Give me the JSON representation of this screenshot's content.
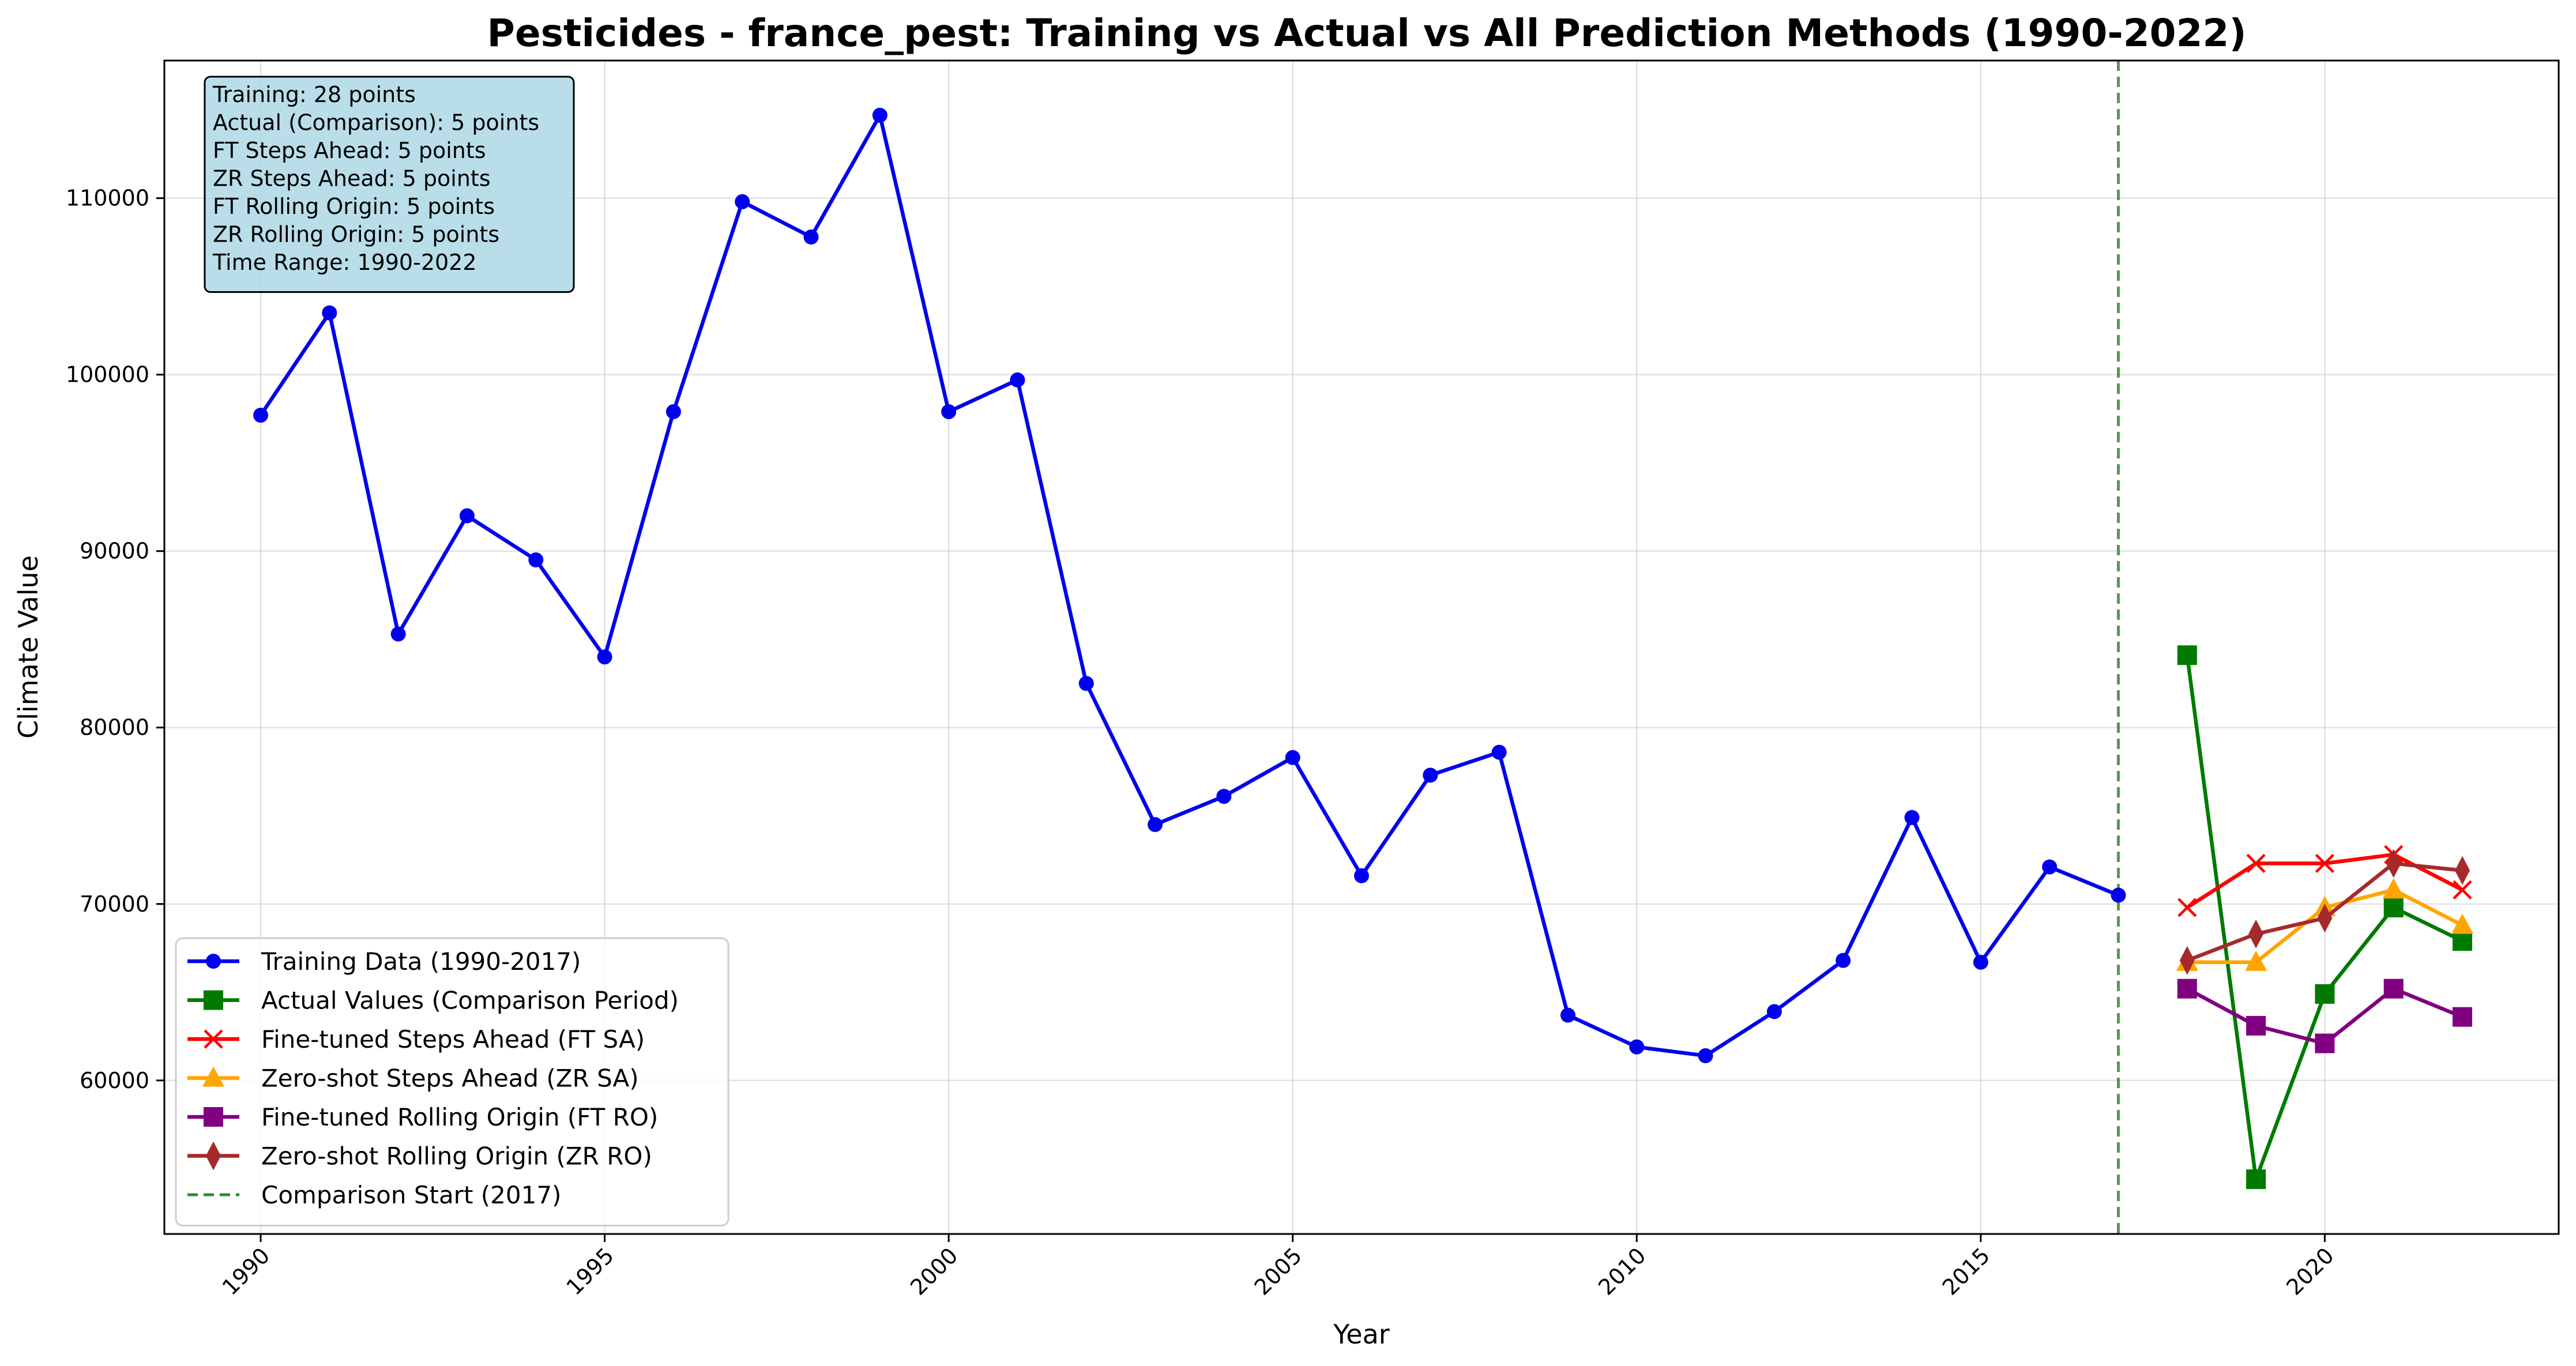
{
  "chart_data": {
    "type": "line",
    "title": "Pesticides - france_pest: Training vs Actual vs All Prediction Methods (1990-2022)",
    "xlabel": "Year",
    "ylabel": "Climate Value",
    "xlim": [
      1988.6,
      2023.4
    ],
    "ylim": [
      51300,
      117800
    ],
    "xticks": [
      1990,
      1995,
      2000,
      2005,
      2010,
      2015,
      2020
    ],
    "yticks": [
      60000,
      70000,
      80000,
      90000,
      100000,
      110000
    ],
    "grid": true,
    "legend_position": "lower-left",
    "info_box": {
      "position": "top-left",
      "lines": [
        "Training: 28 points",
        "Actual (Comparison): 5 points",
        "FT Steps Ahead: 5 points",
        "ZR Steps Ahead: 5 points",
        "FT Rolling Origin: 5 points",
        "ZR Rolling Origin: 5 points",
        "Time Range: 1990-2022"
      ],
      "background": "#add8e6"
    },
    "vline": {
      "x": 2017,
      "label": "Comparison Start (2017)",
      "color": "#2e8b2e",
      "style": "dashed"
    },
    "series": [
      {
        "name": "Training Data (1990-2017)",
        "color": "#0000ee",
        "marker": "circle",
        "x": [
          1990,
          1991,
          1992,
          1993,
          1994,
          1995,
          1996,
          1997,
          1998,
          1999,
          2000,
          2001,
          2002,
          2003,
          2004,
          2005,
          2006,
          2007,
          2008,
          2009,
          2010,
          2011,
          2012,
          2013,
          2014,
          2015,
          2016,
          2017
        ],
        "values": [
          97700,
          103500,
          85300,
          92000,
          89500,
          84000,
          97900,
          109800,
          107800,
          114700,
          97900,
          99700,
          82500,
          74500,
          76100,
          78300,
          71600,
          77300,
          78600,
          63700,
          61900,
          61400,
          63900,
          66800,
          74900,
          66700,
          72100,
          70500
        ]
      },
      {
        "name": "Actual Values (Comparison Period)",
        "color": "#007a00",
        "marker": "square",
        "x": [
          2018,
          2019,
          2020,
          2021,
          2022
        ],
        "values": [
          84100,
          54400,
          64900,
          69800,
          67900
        ]
      },
      {
        "name": "Fine-tuned Steps Ahead (FT SA)",
        "color": "#ff0000",
        "marker": "x",
        "x": [
          2018,
          2019,
          2020,
          2021,
          2022
        ],
        "values": [
          69800,
          72300,
          72300,
          72800,
          70800
        ]
      },
      {
        "name": "Zero-shot Steps Ahead (ZR SA)",
        "color": "#ffa500",
        "marker": "triangle",
        "x": [
          2018,
          2019,
          2020,
          2021,
          2022
        ],
        "values": [
          66700,
          66700,
          69800,
          70800,
          68800
        ]
      },
      {
        "name": "Fine-tuned Rolling Origin (FT RO)",
        "color": "#800080",
        "marker": "square",
        "x": [
          2018,
          2019,
          2020,
          2021,
          2022
        ],
        "values": [
          65200,
          63100,
          62100,
          65200,
          63600
        ]
      },
      {
        "name": "Zero-shot Rolling Origin (ZR RO)",
        "color": "#a52a2a",
        "marker": "diamond",
        "x": [
          2018,
          2019,
          2020,
          2021,
          2022
        ],
        "values": [
          66800,
          68300,
          69200,
          72300,
          71900
        ]
      }
    ]
  }
}
